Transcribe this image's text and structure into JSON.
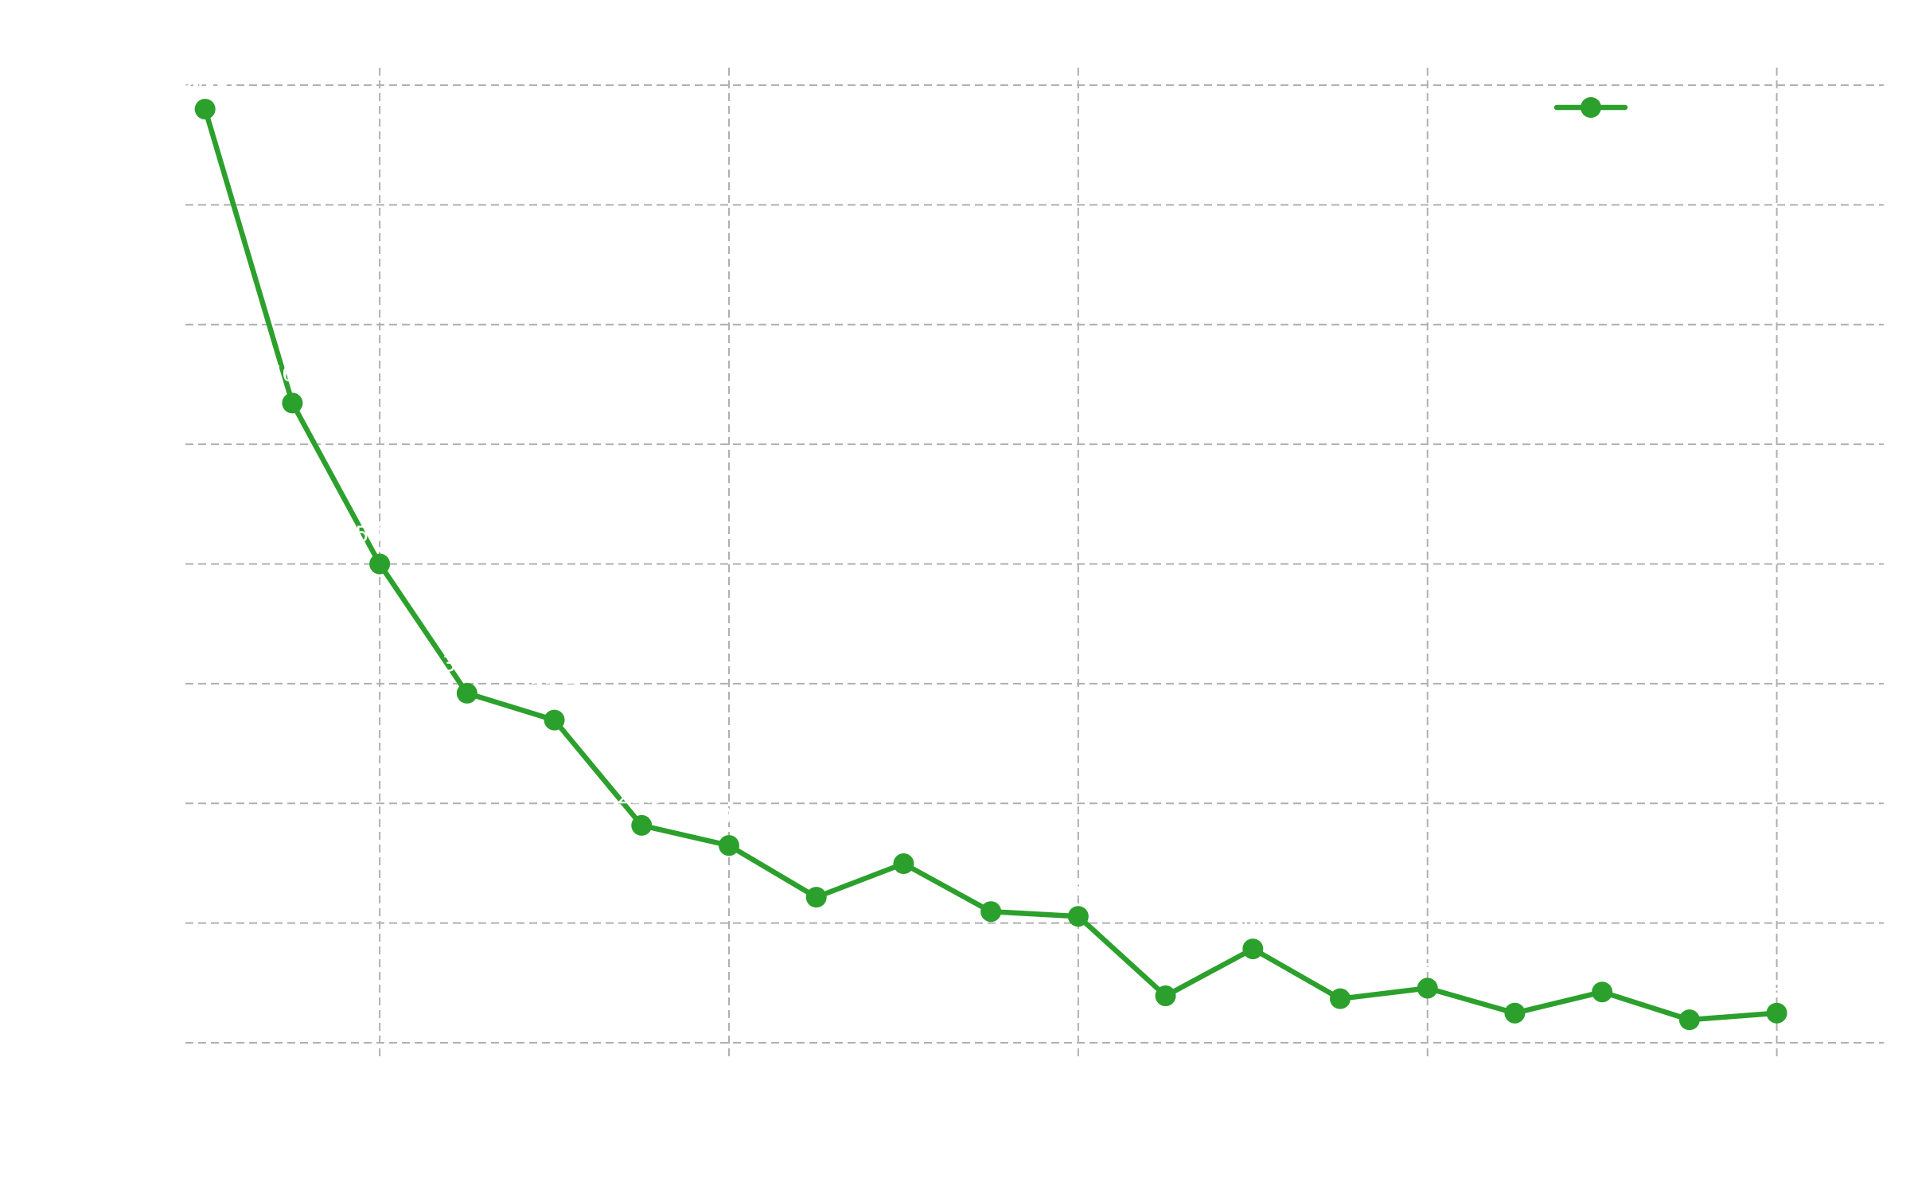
{
  "chart_data": {
    "type": "line",
    "title": "",
    "xlabel": "",
    "ylabel": "",
    "grid": true,
    "legend": "top-right",
    "xlim": [
      0.775,
      20.225
    ],
    "ylim": [
      0,
      100
    ],
    "x_grid": [
      3,
      7,
      11,
      15,
      19
    ],
    "y_grid": [
      0,
      12.5,
      25,
      37.5,
      50,
      62.5,
      75,
      87.5,
      100
    ],
    "series": [
      {
        "color": "#2ca02c",
        "x": [
          1,
          2,
          3,
          4,
          5,
          6,
          7,
          8,
          9,
          10,
          11,
          12,
          13,
          14,
          15,
          16,
          17,
          18,
          19
        ],
        "y": [
          97.5,
          66.8,
          50.0,
          36.5,
          33.7,
          22.7,
          20.6,
          15.2,
          18.7,
          13.7,
          13.2,
          4.9,
          9.8,
          4.6,
          5.7,
          3.1,
          5.3,
          2.4,
          3.1
        ]
      }
    ]
  }
}
